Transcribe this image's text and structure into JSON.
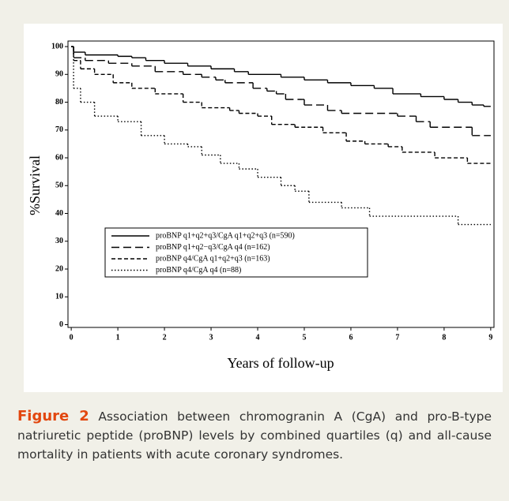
{
  "chart_data": {
    "type": "step",
    "y_label": "%Survival",
    "x_label": "Years of follow-up",
    "xlim": [
      -0.07,
      9.07
    ],
    "ylim": [
      -1,
      102
    ],
    "xticks": [
      0,
      1,
      2,
      3,
      4,
      5,
      6,
      7,
      8,
      9
    ],
    "yticks": [
      0,
      10,
      20,
      30,
      40,
      50,
      60,
      70,
      80,
      90,
      100
    ],
    "series": [
      {
        "name": "proBNP q1+q2+q3/CgA q1+q2+q3 (n=590)",
        "color": "#000000",
        "dash": "none",
        "x": [
          0,
          0.05,
          0.3,
          1,
          1.3,
          1.6,
          2,
          2.5,
          3,
          3.5,
          3.8,
          4.5,
          5,
          5.5,
          6,
          6.5,
          6.9,
          7.5,
          8,
          8.3,
          8.6,
          8.85,
          9
        ],
        "values": [
          100,
          98,
          97,
          96.5,
          96,
          95,
          94,
          93,
          92,
          91,
          90,
          89,
          88,
          87,
          86,
          85,
          83,
          82,
          81,
          80,
          79,
          78.5,
          78.5
        ]
      },
      {
        "name": "proBNP q1+q2−q3/CgA q4 (n=162)",
        "color": "#000000",
        "dash": "10 5",
        "x": [
          0,
          0.05,
          0.3,
          0.8,
          1.3,
          1.8,
          2.4,
          2.8,
          3.1,
          3.3,
          3.9,
          4.2,
          4.4,
          4.6,
          5,
          5.5,
          5.8,
          7,
          7.4,
          7.7,
          8.6,
          9
        ],
        "values": [
          100,
          96,
          95,
          94,
          93,
          91,
          90,
          89,
          88,
          87,
          85,
          84,
          83,
          81,
          79,
          77,
          76,
          75,
          73,
          71,
          68,
          68
        ]
      },
      {
        "name": "proBNP q4/CgA q1+q2+q3 (n=163)",
        "color": "#000000",
        "dash": "5 3",
        "x": [
          0,
          0.05,
          0.2,
          0.5,
          0.9,
          1.3,
          1.8,
          2.4,
          2.8,
          3.4,
          3.6,
          4,
          4.3,
          4.8,
          5.4,
          5.9,
          6.3,
          6.8,
          7.1,
          7.8,
          8.5,
          9
        ],
        "values": [
          100,
          95,
          92,
          90,
          87,
          85,
          83,
          80,
          78,
          77,
          76,
          75,
          72,
          71,
          69,
          66,
          65,
          64,
          62,
          60,
          58,
          58
        ]
      },
      {
        "name": "proBNP q4/CgA q4 (n=88)",
        "color": "#000000",
        "dash": "1.5 2.5",
        "x": [
          0,
          0.05,
          0.2,
          0.5,
          1,
          1.5,
          2,
          2.5,
          2.8,
          3.2,
          3.6,
          4,
          4.5,
          4.8,
          5.1,
          5.8,
          6.4,
          8.3,
          9
        ],
        "values": [
          100,
          85,
          80,
          75,
          73,
          68,
          65,
          64,
          61,
          58,
          56,
          53,
          50,
          48,
          44,
          42,
          39,
          36,
          36
        ]
      }
    ]
  },
  "caption": {
    "label": "Figure 2",
    "text": "Association between chromogranin A (CgA) and pro-B-type natriuretic peptide (proBNP) levels by combined quartiles (q) and all-cause mortality in patients with acute coronary syndromes."
  }
}
